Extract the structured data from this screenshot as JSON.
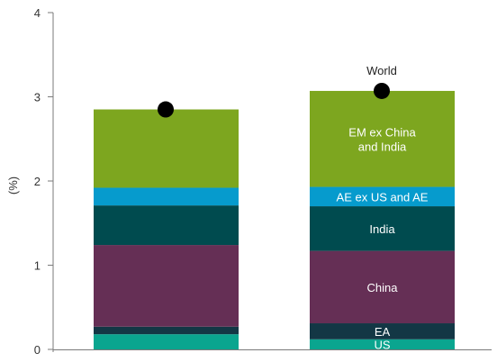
{
  "chart_data": {
    "type": "bar",
    "stacked": true,
    "ylabel": "(%)",
    "ylim": [
      0,
      4
    ],
    "yticks": [
      "0",
      "1",
      "2",
      "3",
      "4"
    ],
    "grid": false,
    "legend": "none",
    "categories": [
      "",
      ""
    ],
    "series": [
      {
        "name": "US",
        "color": "#0aa58f",
        "values": [
          0.18,
          0.12
        ]
      },
      {
        "name": "EA",
        "color": "#133745",
        "values": [
          0.09,
          0.19
        ]
      },
      {
        "name": "China",
        "color": "#652f55",
        "values": [
          0.97,
          0.86
        ]
      },
      {
        "name": "India",
        "color": "#004b4f",
        "values": [
          0.47,
          0.53
        ]
      },
      {
        "name": "AE ex US and AE",
        "color": "#069bcd",
        "values": [
          0.21,
          0.23
        ]
      },
      {
        "name": "EM ex China and India",
        "color": "#7da61f",
        "values": [
          0.93,
          1.14
        ]
      }
    ],
    "segment_labels": {
      "bar_index": 1,
      "items": [
        {
          "series": "US",
          "lines": [
            "US"
          ]
        },
        {
          "series": "EA",
          "lines": [
            "EA"
          ]
        },
        {
          "series": "China",
          "lines": [
            "China"
          ]
        },
        {
          "series": "India",
          "lines": [
            "India"
          ]
        },
        {
          "series": "AE ex US and AE",
          "lines": [
            "AE ex US and AE"
          ]
        },
        {
          "series": "EM ex China and India",
          "lines": [
            "EM ex China",
            "and India"
          ]
        }
      ]
    },
    "total": {
      "name": "World",
      "marker_color": "#000000",
      "values": [
        2.85,
        3.07
      ],
      "label_bar_index": 1
    }
  }
}
